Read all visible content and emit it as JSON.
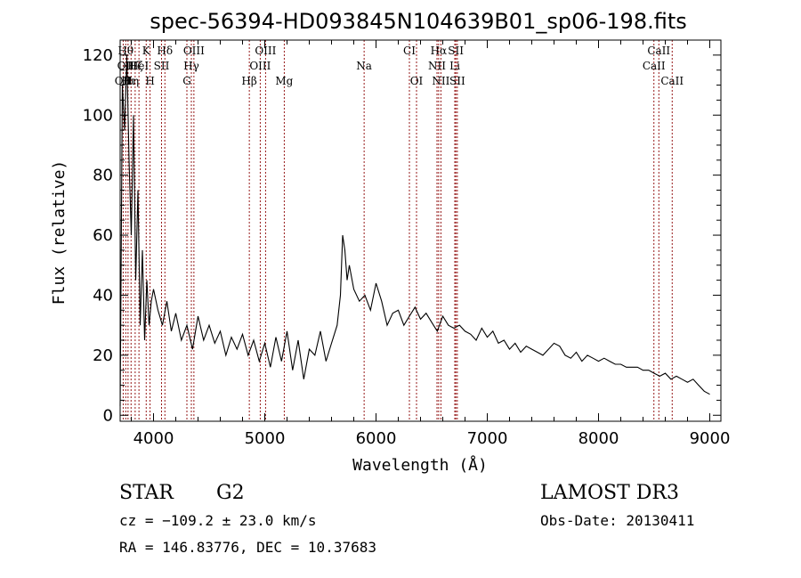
{
  "chart_data": {
    "type": "line",
    "title": "spec-56394-HD093845N104639B01_sp06-198.fits",
    "xlabel": "Wavelength (Å)",
    "ylabel": "Flux (relative)",
    "xlim": [
      3700,
      9100
    ],
    "ylim": [
      -2,
      125
    ],
    "x_ticks": [
      4000,
      5000,
      6000,
      7000,
      8000,
      9000
    ],
    "y_ticks": [
      0,
      20,
      40,
      60,
      80,
      100,
      120
    ],
    "grid": false,
    "series": [
      {
        "x": [
          3700,
          3720,
          3740,
          3760,
          3780,
          3800,
          3820,
          3840,
          3860,
          3880,
          3900,
          3920,
          3940,
          3960,
          3980,
          4000,
          4040,
          4080,
          4120,
          4160,
          4200,
          4250,
          4300,
          4350,
          4400,
          4450,
          4500,
          4550,
          4600,
          4650,
          4700,
          4750,
          4800,
          4850,
          4900,
          4950,
          5000,
          5050,
          5100,
          5150,
          5200,
          5250,
          5300,
          5350,
          5400,
          5450,
          5500,
          5550,
          5600,
          5650,
          5680,
          5700,
          5720,
          5740,
          5760,
          5800,
          5850,
          5900,
          5950,
          6000,
          6050,
          6100,
          6150,
          6200,
          6250,
          6300,
          6350,
          6400,
          6450,
          6500,
          6550,
          6600,
          6650,
          6700,
          6750,
          6800,
          6850,
          6900,
          6950,
          7000,
          7050,
          7100,
          7150,
          7200,
          7250,
          7300,
          7350,
          7400,
          7450,
          7500,
          7550,
          7600,
          7650,
          7700,
          7750,
          7800,
          7850,
          7900,
          7950,
          8000,
          8050,
          8100,
          8150,
          8200,
          8250,
          8300,
          8350,
          8400,
          8450,
          8500,
          8550,
          8600,
          8650,
          8700,
          8750,
          8800,
          8850,
          8900,
          8950,
          9000
        ],
        "y": [
          3,
          110,
          95,
          120,
          85,
          60,
          100,
          45,
          75,
          30,
          55,
          25,
          45,
          30,
          38,
          42,
          35,
          30,
          38,
          28,
          34,
          25,
          30,
          22,
          33,
          25,
          30,
          24,
          28,
          20,
          26,
          22,
          27,
          20,
          25,
          18,
          24,
          16,
          26,
          18,
          28,
          15,
          25,
          12,
          22,
          20,
          28,
          18,
          24,
          30,
          40,
          60,
          55,
          45,
          50,
          42,
          38,
          40,
          35,
          44,
          38,
          30,
          34,
          35,
          30,
          33,
          36,
          32,
          34,
          31,
          28,
          33,
          30,
          29,
          30,
          28,
          27,
          25,
          29,
          26,
          28,
          24,
          25,
          22,
          24,
          21,
          23,
          22,
          21,
          20,
          22,
          24,
          23,
          20,
          19,
          21,
          18,
          20,
          19,
          18,
          19,
          18,
          17,
          17,
          16,
          16,
          16,
          15,
          15,
          14,
          13,
          14,
          12,
          13,
          12,
          11,
          12,
          10,
          8,
          7
        ]
      }
    ],
    "lines": [
      {
        "wl": 3727,
        "rows": [
          [
            "OII",
            3
          ]
        ]
      },
      {
        "wl": 3750,
        "rows": [
          [
            "Hθ",
            1
          ],
          [
            "OII",
            2
          ]
        ]
      },
      {
        "wl": 3771,
        "rows": [
          [
            "Hι",
            3
          ]
        ]
      },
      {
        "wl": 3798,
        "rows": [
          [
            "Hη",
            3
          ]
        ]
      },
      {
        "wl": 3835,
        "rows": [
          [
            "Hζ",
            2
          ]
        ]
      },
      {
        "wl": 3869,
        "rows": [
          [
            "HeI",
            2
          ]
        ]
      },
      {
        "wl": 3934,
        "rows": [
          [
            "K",
            1
          ]
        ]
      },
      {
        "wl": 3969,
        "rows": [
          [
            "H",
            3
          ]
        ]
      },
      {
        "wl": 4072,
        "rows": [
          [
            "SII",
            2
          ]
        ]
      },
      {
        "wl": 4102,
        "rows": [
          [
            "Hδ",
            1
          ]
        ]
      },
      {
        "wl": 4300,
        "rows": [
          [
            "G",
            3
          ]
        ]
      },
      {
        "wl": 4340,
        "rows": [
          [
            "Hγ",
            2
          ]
        ]
      },
      {
        "wl": 4363,
        "rows": [
          [
            "OIII",
            1
          ]
        ]
      },
      {
        "wl": 4861,
        "rows": [
          [
            "Hβ",
            3
          ]
        ]
      },
      {
        "wl": 4959,
        "rows": [
          [
            "OIII",
            2
          ]
        ]
      },
      {
        "wl": 5007,
        "rows": [
          [
            "OIII",
            1
          ]
        ]
      },
      {
        "wl": 5175,
        "rows": [
          [
            "Mg",
            3
          ]
        ]
      },
      {
        "wl": 5893,
        "rows": [
          [
            "Na",
            2
          ]
        ]
      },
      {
        "wl": 6300,
        "rows": [
          [
            "CI",
            1
          ]
        ]
      },
      {
        "wl": 6364,
        "rows": [
          [
            "OI",
            3
          ]
        ]
      },
      {
        "wl": 6548,
        "rows": [
          [
            "NII",
            2
          ]
        ]
      },
      {
        "wl": 6563,
        "rows": [
          [
            "Hα",
            1
          ]
        ]
      },
      {
        "wl": 6583,
        "rows": [
          [
            "NII",
            3
          ]
        ]
      },
      {
        "wl": 6708,
        "rows": [
          [
            "Li",
            2
          ]
        ]
      },
      {
        "wl": 6717,
        "rows": [
          [
            "SII",
            1
          ]
        ]
      },
      {
        "wl": 6731,
        "rows": [
          [
            "SII",
            3
          ]
        ]
      },
      {
        "wl": 8498,
        "rows": [
          [
            "CaII",
            2
          ]
        ]
      },
      {
        "wl": 8542,
        "rows": [
          [
            "CaII",
            1
          ]
        ]
      },
      {
        "wl": 8662,
        "rows": [
          [
            "CaII",
            3
          ]
        ]
      }
    ]
  },
  "info": {
    "class_label": "STAR",
    "subclass": "G2",
    "survey": "LAMOST DR3",
    "cz": "cz = −109.2 ± 23.0 km/s",
    "obs_date": "Obs-Date: 20130411",
    "coords": "RA = 146.83776, DEC =  10.37683"
  },
  "colors": {
    "spectrum": "#000000",
    "line_marker": "#8b0000"
  }
}
